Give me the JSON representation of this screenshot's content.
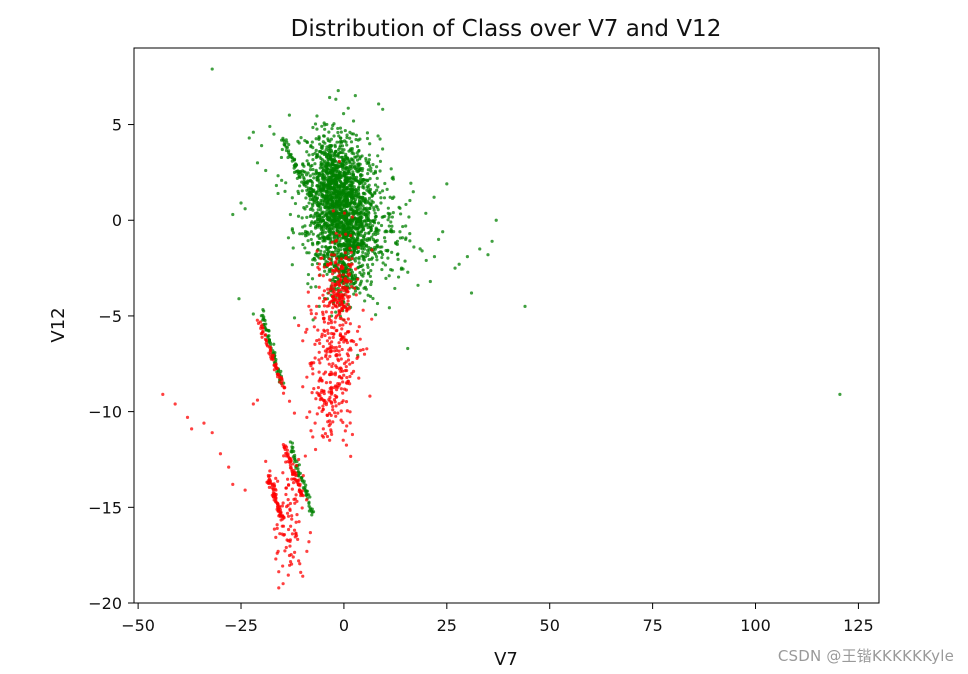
{
  "chart_data": {
    "type": "scatter",
    "title": "Distribution of Class over V7 and V12",
    "xlabel": "V7",
    "ylabel": "V12",
    "xlim": [
      -51,
      130
    ],
    "ylim": [
      -20,
      9
    ],
    "xticks": [
      -50,
      -25,
      0,
      25,
      50,
      75,
      100,
      125
    ],
    "yticks": [
      -20,
      -15,
      -10,
      -5,
      0,
      5
    ],
    "grid": false,
    "series": [
      {
        "color": "#008000",
        "points": [
          [
            -32,
            7.9
          ],
          [
            120.5,
            -9.1
          ],
          [
            44,
            -4.5
          ],
          [
            37,
            0
          ],
          [
            36,
            -1.1
          ],
          [
            35,
            -1.8
          ],
          [
            33,
            -1.5
          ],
          [
            31,
            -3.8
          ],
          [
            30,
            -1.9
          ],
          [
            28,
            -2.3
          ],
          [
            27,
            -2.5
          ],
          [
            25,
            1.9
          ],
          [
            24,
            -0.6
          ],
          [
            23,
            -1.0
          ],
          [
            22,
            -1.9
          ],
          [
            21,
            -3.2
          ],
          [
            20,
            -2.1
          ],
          [
            19,
            -1.6
          ],
          [
            18,
            -3.4
          ],
          [
            17,
            -1.4
          ],
          [
            16,
            -0.7
          ],
          [
            15.5,
            -6.7
          ],
          [
            15,
            -0.3
          ],
          [
            14,
            -2.5
          ],
          [
            13,
            -1.1
          ],
          [
            12,
            0.4
          ],
          [
            11,
            -2.9
          ],
          [
            10,
            -0.6
          ],
          [
            9,
            0.9
          ],
          [
            8,
            -1.4
          ],
          [
            7,
            1.3
          ],
          [
            6,
            -2.8
          ],
          [
            5,
            2.1
          ],
          [
            4,
            1.2
          ],
          [
            3,
            -3.5
          ],
          [
            2,
            1.8
          ],
          [
            1,
            3.2
          ],
          [
            0,
            -4.3
          ],
          [
            -1,
            3.8
          ],
          [
            -2,
            2.2
          ],
          [
            -3,
            3.9
          ],
          [
            -4,
            2.9
          ],
          [
            -5,
            4.1
          ],
          [
            -6,
            4.3
          ],
          [
            -7,
            3.5
          ],
          [
            -8,
            3.9
          ],
          [
            -9,
            4.1
          ],
          [
            -10,
            2.9
          ],
          [
            -12,
            2.5
          ],
          [
            -14,
            4.2
          ],
          [
            -16,
            1.4
          ],
          [
            -17,
            4.5
          ],
          [
            -18,
            4.9
          ],
          [
            -19,
            2.6
          ],
          [
            -20,
            3.9
          ],
          [
            -21,
            3.0
          ],
          [
            -22,
            4.6
          ],
          [
            -23,
            4.3
          ],
          [
            -24,
            0.6
          ],
          [
            -25,
            0.9
          ],
          [
            -27,
            0.3
          ],
          [
            -25.5,
            -4.1
          ],
          [
            -22,
            -4.9
          ],
          [
            -12,
            -5.1
          ],
          [
            -11,
            1.4
          ],
          [
            -13,
            0.3
          ],
          [
            -9,
            -1.7
          ],
          [
            -8,
            -3.5
          ],
          [
            -6,
            -4.5
          ],
          [
            -4,
            -4.1
          ],
          [
            -3,
            -5.0
          ],
          [
            -2,
            -4.8
          ]
        ],
        "lines": [
          {
            "from": [
              -15,
              4.2
            ],
            "to": [
              -7,
              1.0
            ]
          },
          {
            "from": [
              -13,
              -11.7
            ],
            "to": [
              -7.5,
              -15.3
            ]
          },
          {
            "from": [
              -20,
              -4.8
            ],
            "to": [
              -15,
              -8.6
            ]
          }
        ],
        "clusters": [
          {
            "cx": 0,
            "cy": 0.5,
            "sx": 3.8,
            "sy": 1.9,
            "n": 1400
          },
          {
            "cx": 5,
            "cy": -0.5,
            "sx": 6.0,
            "sy": 1.6,
            "n": 240
          },
          {
            "cx": -3,
            "cy": 2.2,
            "sx": 2.4,
            "sy": 1.1,
            "n": 260
          },
          {
            "cx": 0,
            "cy": -2.8,
            "sx": 1.4,
            "sy": 0.9,
            "n": 140
          },
          {
            "cx": -5,
            "cy": 1.5,
            "sx": 4.5,
            "sy": 1.7,
            "n": 200
          }
        ]
      },
      {
        "color": "#ff0000",
        "points": [
          [
            -44,
            -9.1
          ],
          [
            -41,
            -9.6
          ],
          [
            -38,
            -10.3
          ],
          [
            -37,
            -10.9
          ],
          [
            -34,
            -10.6
          ],
          [
            -32,
            -11.1
          ],
          [
            -30,
            -12.2
          ],
          [
            -28,
            -12.9
          ],
          [
            -27,
            -13.8
          ],
          [
            -24,
            -14.1
          ],
          [
            -22,
            -9.6
          ],
          [
            -21,
            -9.4
          ],
          [
            -19,
            -12.6
          ],
          [
            -18,
            -13.1
          ],
          [
            -17,
            -14.3
          ],
          [
            -16,
            -15.2
          ],
          [
            -15,
            -16.4
          ],
          [
            -14,
            -17.1
          ],
          [
            -13,
            -14.8
          ],
          [
            -12,
            -16.2
          ],
          [
            -11,
            -17.8
          ],
          [
            -10.5,
            -18.4
          ],
          [
            -10,
            -18.6
          ],
          [
            -9,
            -17.3
          ],
          [
            -8.5,
            -16.8
          ],
          [
            -13,
            -12.8
          ],
          [
            -12,
            -13.2
          ],
          [
            -11,
            -12.5
          ],
          [
            -9,
            -10.3
          ],
          [
            -8,
            -11.0
          ],
          [
            -7,
            -10.6
          ],
          [
            -6,
            -9.8
          ],
          [
            -5,
            -10.9
          ],
          [
            -4,
            -11.3
          ],
          [
            -3,
            -9.5
          ],
          [
            -10,
            -8.7
          ],
          [
            -9,
            -8.2
          ],
          [
            -8,
            -7.6
          ],
          [
            -7,
            -7.2
          ],
          [
            -6,
            -6.9
          ],
          [
            -5,
            -6.6
          ],
          [
            -4,
            -6.3
          ],
          [
            -3,
            -5.6
          ],
          [
            -2,
            -5.1
          ],
          [
            -1,
            -4.1
          ],
          [
            0,
            -3.3
          ],
          [
            1,
            -2.8
          ],
          [
            2,
            -2.3
          ],
          [
            3,
            -3.9
          ],
          [
            3,
            -6.5
          ],
          [
            4,
            -6.8
          ],
          [
            5,
            -7.0
          ],
          [
            -10,
            -6.3
          ],
          [
            -11,
            -5.5
          ],
          [
            -9,
            -5.7
          ],
          [
            -6,
            -3.5
          ],
          [
            -5,
            -2.9
          ],
          [
            -4,
            -2.3
          ],
          [
            -3,
            -1.8
          ],
          [
            -2,
            -1.1
          ],
          [
            -1,
            -0.8
          ],
          [
            -1,
            -4.9
          ],
          [
            -2,
            -7.6
          ],
          [
            -3,
            -8.8
          ],
          [
            -4,
            -10.2
          ],
          [
            -5,
            -9.4
          ],
          [
            -7,
            -5.1
          ],
          [
            -8,
            -4.7
          ]
        ],
        "lines": [
          {
            "from": [
              -20.5,
              -5.3
            ],
            "to": [
              -14.5,
              -8.9
            ]
          },
          {
            "from": [
              -18.5,
              -13.4
            ],
            "to": [
              -15.0,
              -15.6
            ]
          },
          {
            "from": [
              -14.5,
              -11.8
            ],
            "to": [
              -10.0,
              -14.5
            ]
          }
        ],
        "clusters": [
          {
            "cx": -2,
            "cy": -6.0,
            "sx": 3.0,
            "sy": 2.4,
            "n": 300
          },
          {
            "cx": -1,
            "cy": -3.5,
            "sx": 1.4,
            "sy": 1.1,
            "n": 90
          },
          {
            "cx": -13.5,
            "cy": -15.5,
            "sx": 1.9,
            "sy": 1.9,
            "n": 90
          },
          {
            "cx": -4,
            "cy": -9.5,
            "sx": 1.8,
            "sy": 1.2,
            "n": 60
          }
        ]
      }
    ]
  },
  "watermark": "CSDN @王锴KKKKKKyle"
}
